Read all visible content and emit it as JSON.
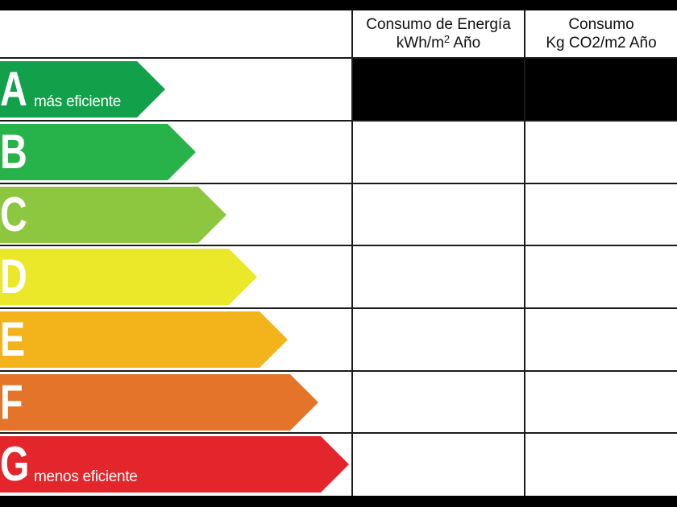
{
  "header": {
    "energy_line1": "Consumo de Energía",
    "energy_line2_main": "kWh/m",
    "energy_line2_sup": "2",
    "energy_line2_tail": " Año",
    "co2_line1": "Consumo",
    "co2_line2": "Kg CO2/m2 Año"
  },
  "bands": [
    {
      "letter": "A",
      "caption": "más eficiente",
      "color": "#13a04a"
    },
    {
      "letter": "B",
      "caption": "",
      "color": "#28b34a"
    },
    {
      "letter": "C",
      "caption": "",
      "color": "#8dc63f"
    },
    {
      "letter": "D",
      "caption": "",
      "color": "#ebe82a"
    },
    {
      "letter": "E",
      "caption": "",
      "color": "#f3b31b"
    },
    {
      "letter": "F",
      "caption": "",
      "color": "#e4742a"
    },
    {
      "letter": "G",
      "caption": "menos eficiente",
      "color": "#e3262b"
    }
  ],
  "colors": {
    "frame": "#000000",
    "filled_cell": "#000000"
  }
}
